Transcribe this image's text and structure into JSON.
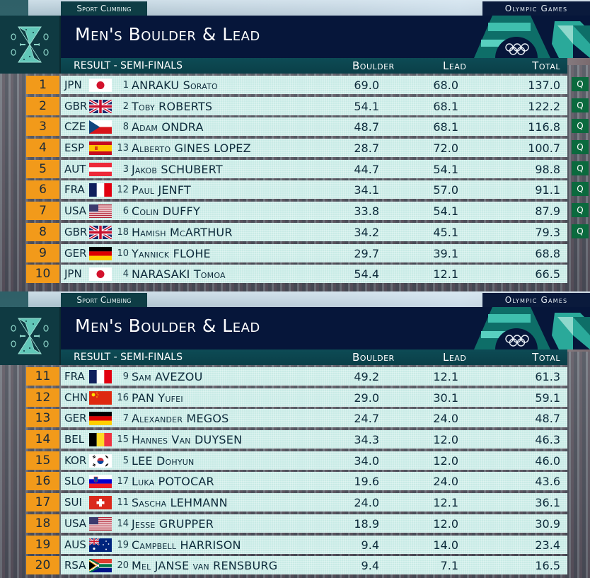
{
  "header": {
    "sport": "Sport Climbing",
    "games": "Olympic Games",
    "title": "Men's Boulder & Lead",
    "subtitle": "RESULT - SEMI-FINALS",
    "columns": {
      "boulder": "Boulder",
      "lead": "Lead",
      "total": "Total"
    }
  },
  "colors": {
    "rank_bg": "#f29a1a",
    "row_bg": "#c8ebe6",
    "title_bg": "#06163a",
    "subheader_bg": "#0d4b55",
    "qualified_badge": "#0b6a3e"
  },
  "panels": [
    {
      "rows": [
        {
          "rank": "1",
          "noc": "JPN",
          "flag": "jpn",
          "bib": "1",
          "name": "ANRAKU Sorato",
          "boulder": "69.0",
          "lead": "68.0",
          "total": "137.0",
          "q": "Q"
        },
        {
          "rank": "2",
          "noc": "GBR",
          "flag": "gbr",
          "bib": "2",
          "name": "Toby ROBERTS",
          "boulder": "54.1",
          "lead": "68.1",
          "total": "122.2",
          "q": "Q"
        },
        {
          "rank": "3",
          "noc": "CZE",
          "flag": "cze",
          "bib": "8",
          "name": "Adam ONDRA",
          "boulder": "48.7",
          "lead": "68.1",
          "total": "116.8",
          "q": "Q"
        },
        {
          "rank": "4",
          "noc": "ESP",
          "flag": "esp",
          "bib": "13",
          "name": "Alberto GINES LOPEZ",
          "boulder": "28.7",
          "lead": "72.0",
          "total": "100.7",
          "q": "Q"
        },
        {
          "rank": "5",
          "noc": "AUT",
          "flag": "aut",
          "bib": "3",
          "name": "Jakob SCHUBERT",
          "boulder": "44.7",
          "lead": "54.1",
          "total": "98.8",
          "q": "Q"
        },
        {
          "rank": "6",
          "noc": "FRA",
          "flag": "fra",
          "bib": "12",
          "name": "Paul JENFT",
          "boulder": "34.1",
          "lead": "57.0",
          "total": "91.1",
          "q": "Q"
        },
        {
          "rank": "7",
          "noc": "USA",
          "flag": "usa",
          "bib": "6",
          "name": "Colin DUFFY",
          "boulder": "33.8",
          "lead": "54.1",
          "total": "87.9",
          "q": "Q"
        },
        {
          "rank": "8",
          "noc": "GBR",
          "flag": "gbr",
          "bib": "18",
          "name": "Hamish McARTHUR",
          "boulder": "34.2",
          "lead": "45.1",
          "total": "79.3",
          "q": "Q"
        },
        {
          "rank": "9",
          "noc": "GER",
          "flag": "ger",
          "bib": "10",
          "name": "Yannick FLOHE",
          "boulder": "29.7",
          "lead": "39.1",
          "total": "68.8",
          "q": ""
        },
        {
          "rank": "10",
          "noc": "JPN",
          "flag": "jpn",
          "bib": "4",
          "name": "NARASAKI Tomoa",
          "boulder": "54.4",
          "lead": "12.1",
          "total": "66.5",
          "q": ""
        }
      ]
    },
    {
      "rows": [
        {
          "rank": "11",
          "noc": "FRA",
          "flag": "fra",
          "bib": "9",
          "name": "Sam AVEZOU",
          "boulder": "49.2",
          "lead": "12.1",
          "total": "61.3",
          "q": ""
        },
        {
          "rank": "12",
          "noc": "CHN",
          "flag": "chn",
          "bib": "16",
          "name": "PAN Yufei",
          "boulder": "29.0",
          "lead": "30.1",
          "total": "59.1",
          "q": ""
        },
        {
          "rank": "13",
          "noc": "GER",
          "flag": "ger",
          "bib": "7",
          "name": "Alexander MEGOS",
          "boulder": "24.7",
          "lead": "24.0",
          "total": "48.7",
          "q": ""
        },
        {
          "rank": "14",
          "noc": "BEL",
          "flag": "bel",
          "bib": "15",
          "name": "Hannes Van DUYSEN",
          "boulder": "34.3",
          "lead": "12.0",
          "total": "46.3",
          "q": ""
        },
        {
          "rank": "15",
          "noc": "KOR",
          "flag": "kor",
          "bib": "5",
          "name": "LEE Dohyun",
          "boulder": "34.0",
          "lead": "12.0",
          "total": "46.0",
          "q": ""
        },
        {
          "rank": "16",
          "noc": "SLO",
          "flag": "slo",
          "bib": "17",
          "name": "Luka POTOCAR",
          "boulder": "19.6",
          "lead": "24.0",
          "total": "43.6",
          "q": ""
        },
        {
          "rank": "17",
          "noc": "SUI",
          "flag": "sui",
          "bib": "11",
          "name": "Sascha LEHMANN",
          "boulder": "24.0",
          "lead": "12.1",
          "total": "36.1",
          "q": ""
        },
        {
          "rank": "18",
          "noc": "USA",
          "flag": "usa",
          "bib": "14",
          "name": "Jesse GRUPPER",
          "boulder": "18.9",
          "lead": "12.0",
          "total": "30.9",
          "q": ""
        },
        {
          "rank": "19",
          "noc": "AUS",
          "flag": "aus",
          "bib": "19",
          "name": "Campbell HARRISON",
          "boulder": "9.4",
          "lead": "14.0",
          "total": "23.4",
          "q": ""
        },
        {
          "rank": "20",
          "noc": "RSA",
          "flag": "rsa",
          "bib": "20",
          "name": "Mel JANSE van RENSBURG",
          "boulder": "9.4",
          "lead": "7.1",
          "total": "16.5",
          "q": ""
        }
      ]
    }
  ]
}
